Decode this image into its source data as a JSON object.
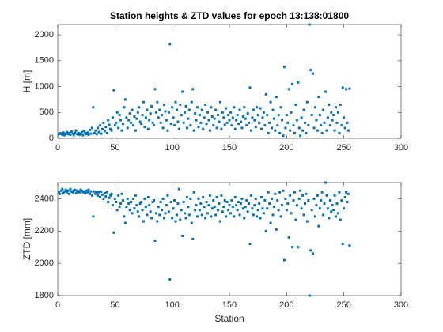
{
  "chart_data": [
    {
      "type": "scatter",
      "title": "Station heights & ZTD values for epoch 13:138:01800",
      "ylabel": "H [m]",
      "color": "#0072bd",
      "xlim": [
        0,
        300
      ],
      "xticks": [
        0,
        50,
        100,
        150,
        200,
        250,
        300
      ],
      "ylim": [
        0,
        2200
      ],
      "yticks": [
        0,
        500,
        1000,
        1500,
        2000
      ],
      "x": [
        1,
        2,
        3,
        4,
        5,
        6,
        7,
        8,
        9,
        10,
        11,
        12,
        13,
        14,
        15,
        16,
        17,
        18,
        19,
        20,
        21,
        22,
        23,
        24,
        25,
        26,
        27,
        28,
        29,
        30,
        31,
        32,
        33,
        34,
        35,
        36,
        37,
        38,
        39,
        40,
        41,
        42,
        43,
        44,
        45,
        46,
        47,
        48,
        49,
        50,
        51,
        52,
        53,
        54,
        55,
        56,
        57,
        58,
        59,
        60,
        61,
        62,
        63,
        64,
        65,
        66,
        67,
        68,
        69,
        70,
        71,
        72,
        73,
        74,
        75,
        76,
        77,
        78,
        79,
        80,
        81,
        82,
        83,
        84,
        85,
        86,
        87,
        88,
        89,
        90,
        91,
        92,
        93,
        94,
        95,
        96,
        97,
        98,
        99,
        100,
        101,
        102,
        103,
        104,
        105,
        106,
        107,
        108,
        109,
        110,
        111,
        112,
        113,
        114,
        115,
        116,
        117,
        118,
        119,
        120,
        121,
        122,
        123,
        124,
        125,
        126,
        127,
        128,
        129,
        130,
        131,
        132,
        133,
        134,
        135,
        136,
        137,
        138,
        139,
        140,
        141,
        142,
        143,
        144,
        145,
        146,
        147,
        148,
        149,
        150,
        151,
        152,
        153,
        154,
        155,
        156,
        157,
        158,
        159,
        160,
        161,
        162,
        163,
        164,
        165,
        166,
        167,
        168,
        169,
        170,
        171,
        172,
        173,
        174,
        175,
        176,
        177,
        178,
        179,
        180,
        181,
        182,
        183,
        184,
        185,
        186,
        187,
        188,
        189,
        190,
        191,
        192,
        193,
        194,
        195,
        196,
        197,
        198,
        199,
        200,
        201,
        202,
        203,
        204,
        205,
        206,
        207,
        208,
        209,
        210,
        211,
        212,
        213,
        214,
        215,
        216,
        217,
        218,
        219,
        220,
        221,
        222,
        223,
        224,
        225,
        226,
        227,
        228,
        229,
        230,
        231,
        232,
        233,
        234,
        235,
        236,
        237,
        238,
        239,
        240,
        241,
        242,
        243,
        244,
        245,
        246,
        247,
        248,
        249,
        250,
        251,
        252,
        253,
        254,
        255
      ],
      "values": [
        80,
        100,
        90,
        70,
        110,
        60,
        90,
        120,
        80,
        100,
        70,
        130,
        90,
        60,
        110,
        150,
        80,
        100,
        70,
        90,
        120,
        60,
        140,
        100,
        80,
        110,
        70,
        160,
        90,
        200,
        600,
        100,
        150,
        80,
        200,
        120,
        250,
        90,
        180,
        300,
        140,
        220,
        100,
        350,
        260,
        180,
        150,
        400,
        930,
        250,
        300,
        500,
        200,
        450,
        350,
        150,
        280,
        600,
        750,
        400,
        200,
        350,
        480,
        300,
        550,
        250,
        420,
        150,
        380,
        500,
        600,
        320,
        280,
        450,
        700,
        220,
        400,
        550,
        180,
        350,
        480,
        620,
        300,
        250,
        950,
        500,
        700,
        400,
        550,
        300,
        450,
        200,
        650,
        520,
        350,
        150,
        500,
        1820,
        280,
        600,
        400,
        250,
        700,
        550,
        320,
        180,
        650,
        450,
        900,
        300,
        500,
        620,
        200,
        380,
        550,
        250,
        700,
        950,
        150,
        480,
        350,
        600,
        220,
        450,
        300,
        550,
        180,
        400,
        650,
        280,
        500,
        350,
        150,
        600,
        420,
        250,
        380,
        550,
        200,
        450,
        320,
        700,
        180,
        500,
        400,
        260,
        580,
        300,
        450,
        350,
        500,
        250,
        400,
        600,
        180,
        350,
        450,
        280,
        550,
        320,
        200,
        420,
        600,
        380,
        250,
        480,
        300,
        980,
        150,
        400,
        550,
        350,
        220,
        600,
        450,
        300,
        580,
        180,
        400,
        500,
        250,
        850,
        450,
        100,
        300,
        700,
        200,
        550,
        380,
        150,
        800,
        250,
        450,
        100,
        600,
        350,
        50,
        1380,
        200,
        450,
        300,
        950,
        150,
        500,
        1050,
        250,
        100,
        650,
        350,
        1080,
        200,
        50,
        400,
        150,
        550,
        300,
        100,
        700,
        250,
        2200,
        1320,
        450,
        1250,
        200,
        600,
        350,
        150,
        800,
        450,
        250,
        100,
        550,
        300,
        900,
        150,
        400,
        650,
        250,
        500,
        350,
        450,
        150,
        600,
        300,
        500,
        100,
        650,
        250,
        980,
        400,
        200,
        950,
        300,
        150,
        960
      ]
    },
    {
      "type": "scatter",
      "xlabel": "Station",
      "ylabel": "ZTD [mm]",
      "color": "#0072bd",
      "xlim": [
        0,
        300
      ],
      "xticks": [
        0,
        50,
        100,
        150,
        200,
        250,
        300
      ],
      "ylim": [
        1800,
        2500
      ],
      "yticks": [
        1800,
        2000,
        2200,
        2400
      ],
      "x": [
        1,
        2,
        3,
        4,
        5,
        6,
        7,
        8,
        9,
        10,
        11,
        12,
        13,
        14,
        15,
        16,
        17,
        18,
        19,
        20,
        21,
        22,
        23,
        24,
        25,
        26,
        27,
        28,
        29,
        30,
        31,
        32,
        33,
        34,
        35,
        36,
        37,
        38,
        39,
        40,
        41,
        42,
        43,
        44,
        45,
        46,
        47,
        48,
        49,
        50,
        51,
        52,
        53,
        54,
        55,
        56,
        57,
        58,
        59,
        60,
        61,
        62,
        63,
        64,
        65,
        66,
        67,
        68,
        69,
        70,
        71,
        72,
        73,
        74,
        75,
        76,
        77,
        78,
        79,
        80,
        81,
        82,
        83,
        84,
        85,
        86,
        87,
        88,
        89,
        90,
        91,
        92,
        93,
        94,
        95,
        96,
        97,
        98,
        99,
        100,
        101,
        102,
        103,
        104,
        105,
        106,
        107,
        108,
        109,
        110,
        111,
        112,
        113,
        114,
        115,
        116,
        117,
        118,
        119,
        120,
        121,
        122,
        123,
        124,
        125,
        126,
        127,
        128,
        129,
        130,
        131,
        132,
        133,
        134,
        135,
        136,
        137,
        138,
        139,
        140,
        141,
        142,
        143,
        144,
        145,
        146,
        147,
        148,
        149,
        150,
        151,
        152,
        153,
        154,
        155,
        156,
        157,
        158,
        159,
        160,
        161,
        162,
        163,
        164,
        165,
        166,
        167,
        168,
        169,
        170,
        171,
        172,
        173,
        174,
        175,
        176,
        177,
        178,
        179,
        180,
        181,
        182,
        183,
        184,
        185,
        186,
        187,
        188,
        189,
        190,
        191,
        192,
        193,
        194,
        195,
        196,
        197,
        198,
        199,
        200,
        201,
        202,
        203,
        204,
        205,
        206,
        207,
        208,
        209,
        210,
        211,
        212,
        213,
        214,
        215,
        216,
        217,
        218,
        219,
        220,
        221,
        222,
        223,
        224,
        225,
        226,
        227,
        228,
        229,
        230,
        231,
        232,
        233,
        234,
        235,
        236,
        237,
        238,
        239,
        240,
        241,
        242,
        243,
        244,
        245,
        246,
        247,
        248,
        249,
        250,
        251,
        252,
        253,
        254,
        255
      ],
      "values": [
        2440,
        2430,
        2450,
        2460,
        2435,
        2445,
        2455,
        2440,
        2450,
        2430,
        2460,
        2445,
        2440,
        2450,
        2455,
        2435,
        2450,
        2445,
        2440,
        2455,
        2450,
        2440,
        2445,
        2435,
        2450,
        2440,
        2455,
        2430,
        2445,
        2420,
        2290,
        2445,
        2430,
        2440,
        2420,
        2440,
        2410,
        2445,
        2425,
        2400,
        2435,
        2415,
        2440,
        2380,
        2405,
        2420,
        2430,
        2360,
        2190,
        2400,
        2380,
        2330,
        2420,
        2350,
        2370,
        2430,
        2390,
        2290,
        2250,
        2350,
        2400,
        2370,
        2330,
        2380,
        2310,
        2400,
        2340,
        2420,
        2360,
        2320,
        2290,
        2370,
        2380,
        2330,
        2260,
        2400,
        2350,
        2300,
        2410,
        2360,
        2320,
        2280,
        2380,
        2390,
        2140,
        2310,
        2260,
        2350,
        2300,
        2380,
        2330,
        2400,
        2280,
        2310,
        2360,
        2420,
        2320,
        1900,
        2380,
        2280,
        2340,
        2390,
        2260,
        2300,
        2370,
        2460,
        2270,
        2330,
        2170,
        2380,
        2310,
        2280,
        2410,
        2350,
        2300,
        2400,
        2250,
        2150,
        2440,
        2330,
        2360,
        2290,
        2400,
        2330,
        2370,
        2300,
        2410,
        2350,
        2280,
        2380,
        2310,
        2360,
        2420,
        2290,
        2340,
        2390,
        2350,
        2300,
        2410,
        2330,
        2370,
        2260,
        2420,
        2320,
        2350,
        2390,
        2290,
        2380,
        2330,
        2360,
        2310,
        2390,
        2350,
        2290,
        2410,
        2360,
        2330,
        2380,
        2300,
        2370,
        2400,
        2340,
        2280,
        2350,
        2390,
        2320,
        2370,
        2120,
        2420,
        2340,
        2300,
        2360,
        2400,
        2290,
        2330,
        2370,
        2280,
        2410,
        2340,
        2310,
        2390,
        2200,
        2340,
        2440,
        2370,
        2250,
        2400,
        2300,
        2350,
        2430,
        2210,
        2390,
        2330,
        2440,
        2290,
        2360,
        2450,
        2020,
        2400,
        2330,
        2370,
        2160,
        2420,
        2310,
        2100,
        2390,
        2440,
        2270,
        2360,
        2100,
        2400,
        2450,
        2340,
        2420,
        2300,
        2370,
        2430,
        2260,
        2390,
        1800,
        2080,
        2330,
        2060,
        2400,
        2290,
        2360,
        2420,
        2230,
        2340,
        2390,
        2440,
        2300,
        2370,
        2500,
        2420,
        2340,
        2280,
        2390,
        2320,
        2360,
        2330,
        2420,
        2290,
        2370,
        2310,
        2440,
        2270,
        2390,
        2120,
        2340,
        2410,
        2440,
        2380,
        2430,
        2110
      ]
    }
  ]
}
